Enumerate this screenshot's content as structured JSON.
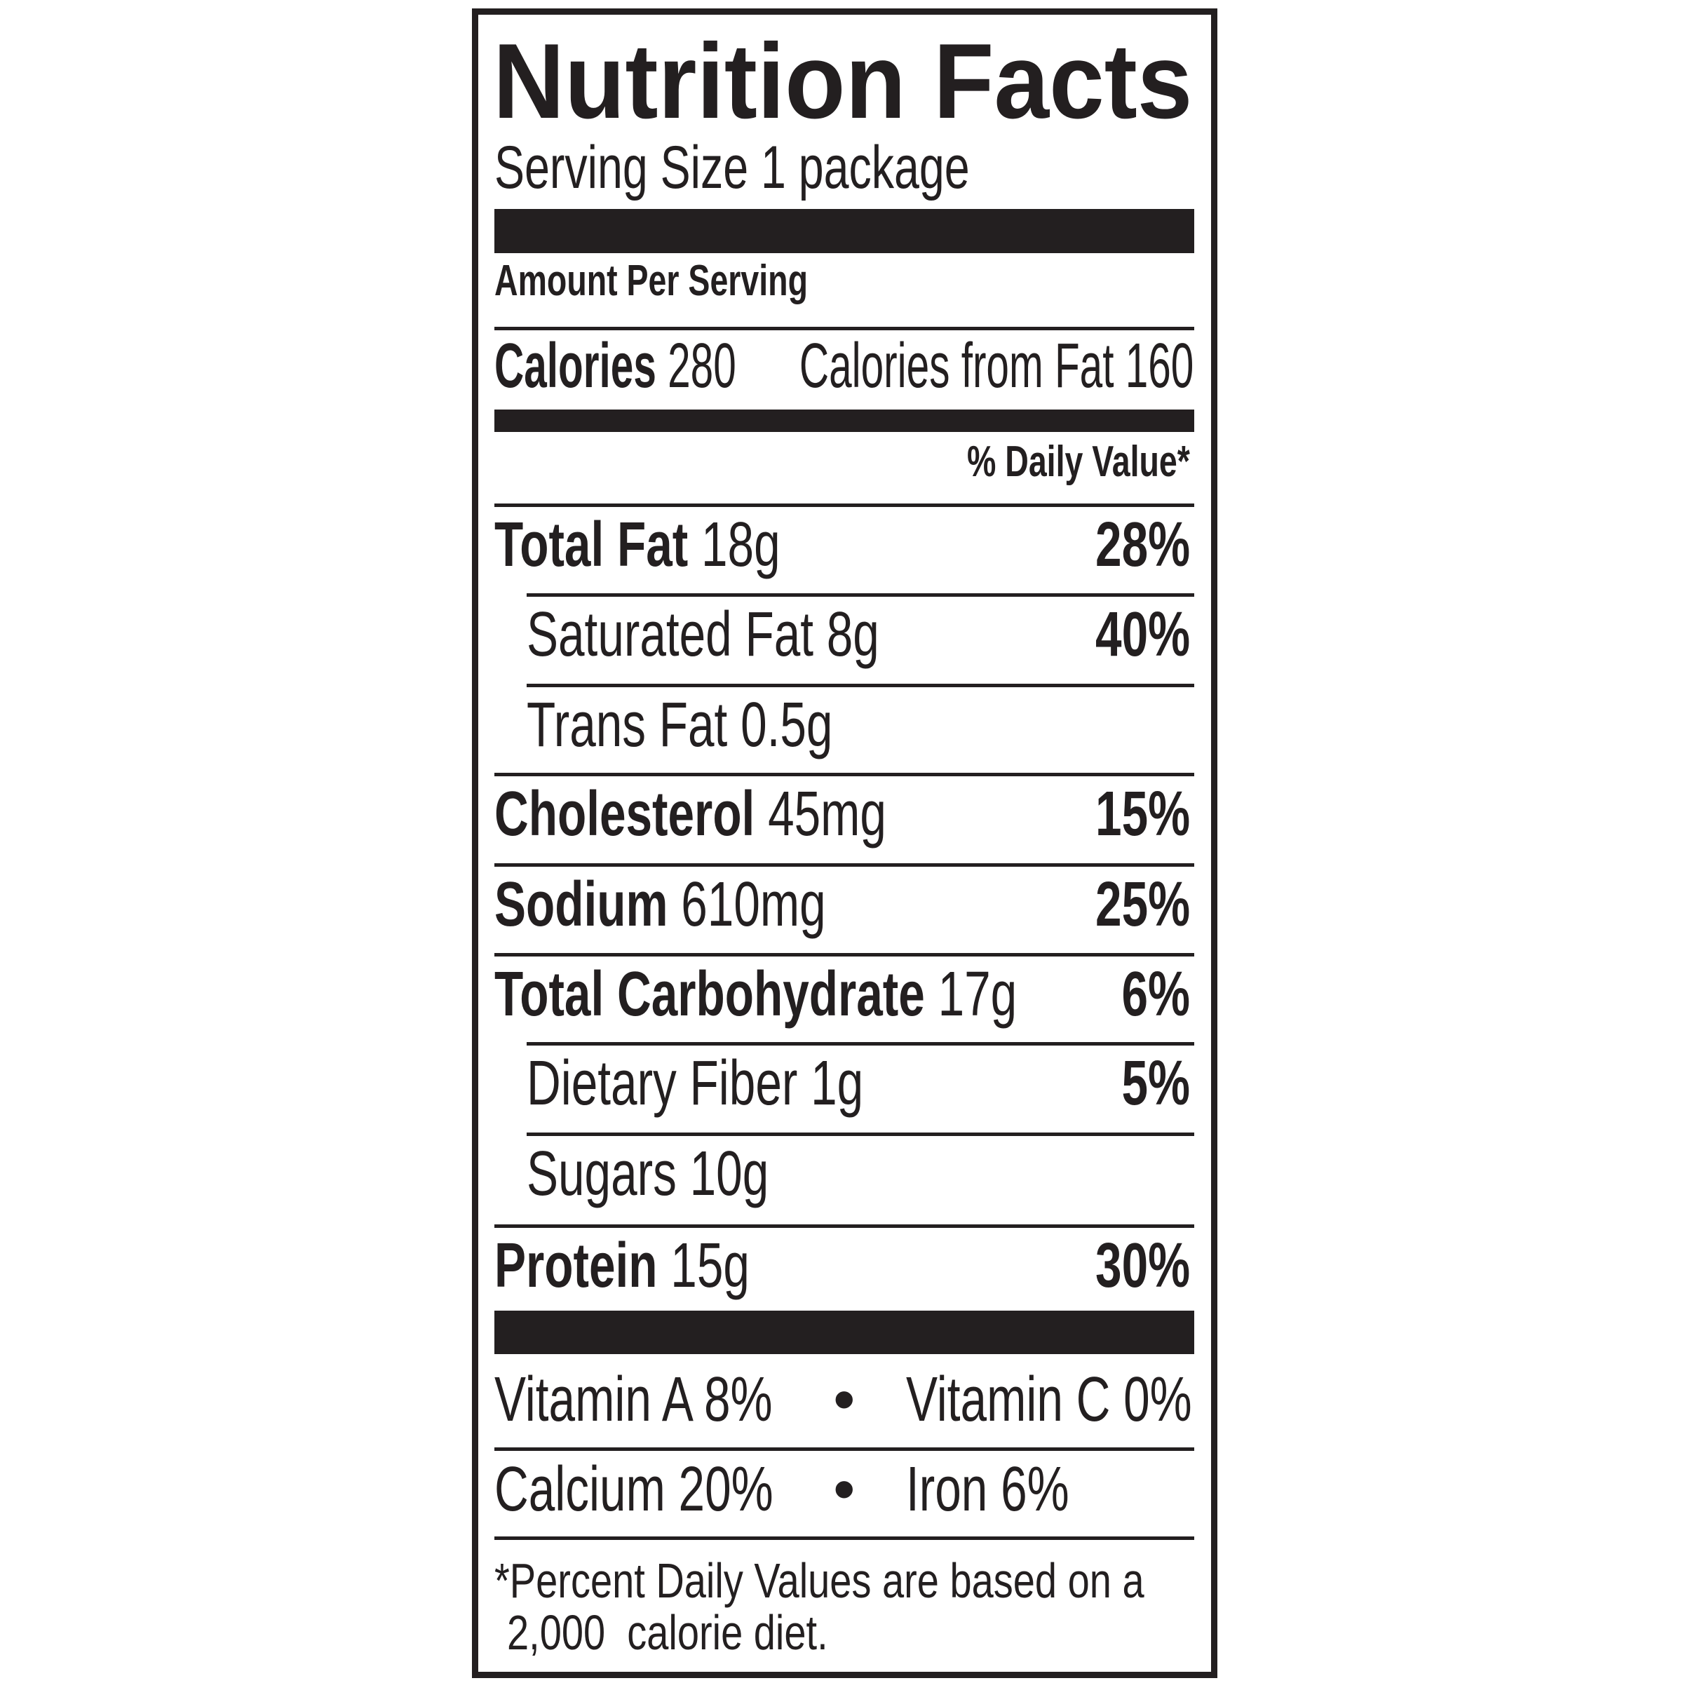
{
  "title": "Nutrition Facts",
  "serving_size": "Serving Size 1 package",
  "amount_per_serving": "Amount Per Serving",
  "calories": {
    "label": "Calories",
    "value": "280",
    "from_fat": "Calories from Fat 160"
  },
  "daily_value_header": "% Daily Value*",
  "nutrients": [
    {
      "label": "Total Fat",
      "amount": "18g",
      "dv": "28%"
    },
    {
      "label": "Saturated Fat",
      "amount": "8g",
      "dv": "40%"
    },
    {
      "label": "Trans Fat",
      "amount": "0.5g",
      "dv": ""
    },
    {
      "label": "Cholesterol",
      "amount": "45mg",
      "dv": "15%"
    },
    {
      "label": "Sodium",
      "amount": "610mg",
      "dv": "25%"
    },
    {
      "label": "Total Carbohydrate",
      "amount": "17g",
      "dv": "6%"
    },
    {
      "label": "Dietary Fiber",
      "amount": "1g",
      "dv": "5%"
    },
    {
      "label": "Sugars",
      "amount": "10g",
      "dv": ""
    },
    {
      "label": "Protein",
      "amount": "15g",
      "dv": "30%"
    }
  ],
  "vitamins": [
    {
      "label": "Vitamin A 8%"
    },
    {
      "label": "Vitamin C 0%"
    },
    {
      "label": "Calcium 20%"
    },
    {
      "label": "Iron 6%"
    }
  ],
  "bullet": "•",
  "footnote": {
    "line1": "*Percent Daily Values are based on a",
    "line2": "2,000  calorie diet."
  }
}
